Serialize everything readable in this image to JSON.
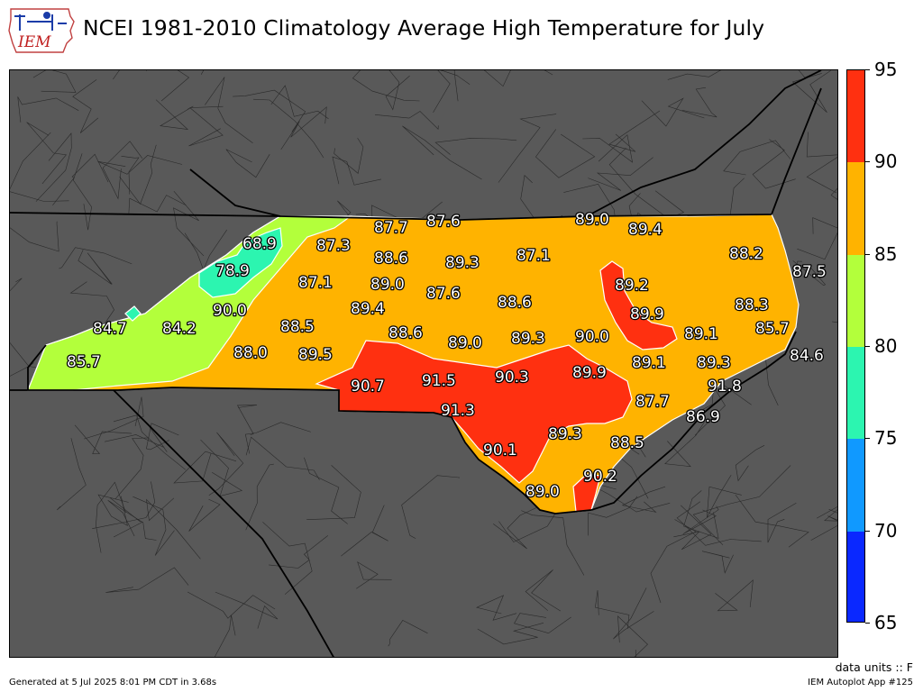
{
  "header": {
    "logo_text": "IEM",
    "title": "NCEI 1981-2010 Climatology Average High Temperature for July"
  },
  "colors": {
    "background": "#595959",
    "band_65_70": "#0a28ff",
    "band_70_75": "#1099ff",
    "band_75_80": "#2cf5b0",
    "band_80_85": "#b3ff3b",
    "band_85_90": "#ffb300",
    "band_90_95": "#ff3010"
  },
  "colorbar": {
    "ticks": [
      "65",
      "70",
      "75",
      "80",
      "85",
      "90",
      "95"
    ],
    "levels": [
      65,
      70,
      75,
      80,
      85,
      90,
      95
    ]
  },
  "station_values": [
    "68.9",
    "78.9",
    "84.7",
    "84.2",
    "90.0",
    "85.7",
    "88.0",
    "87.3",
    "87.7",
    "87.6",
    "89.0",
    "89.4",
    "88.2",
    "87.5",
    "88.6",
    "89.3",
    "87.1",
    "87.1",
    "89.0",
    "87.6",
    "88.6",
    "89.2",
    "89.9",
    "88.3",
    "85.7",
    "88.5",
    "89.4",
    "88.6",
    "89.0",
    "89.3",
    "90.0",
    "89.1",
    "89.5",
    "89.1",
    "89.3",
    "84.6",
    "90.7",
    "91.5",
    "90.3",
    "89.9",
    "91.8",
    "91.3",
    "87.7",
    "86.9",
    "89.3",
    "88.5",
    "90.1",
    "90.2",
    "89.0"
  ],
  "footer": {
    "units": "data units :: F",
    "generated": "Generated at 5 Jul 2025 8:01 PM CDT in 3.68s",
    "app": "IEM Autoplot App #125"
  }
}
